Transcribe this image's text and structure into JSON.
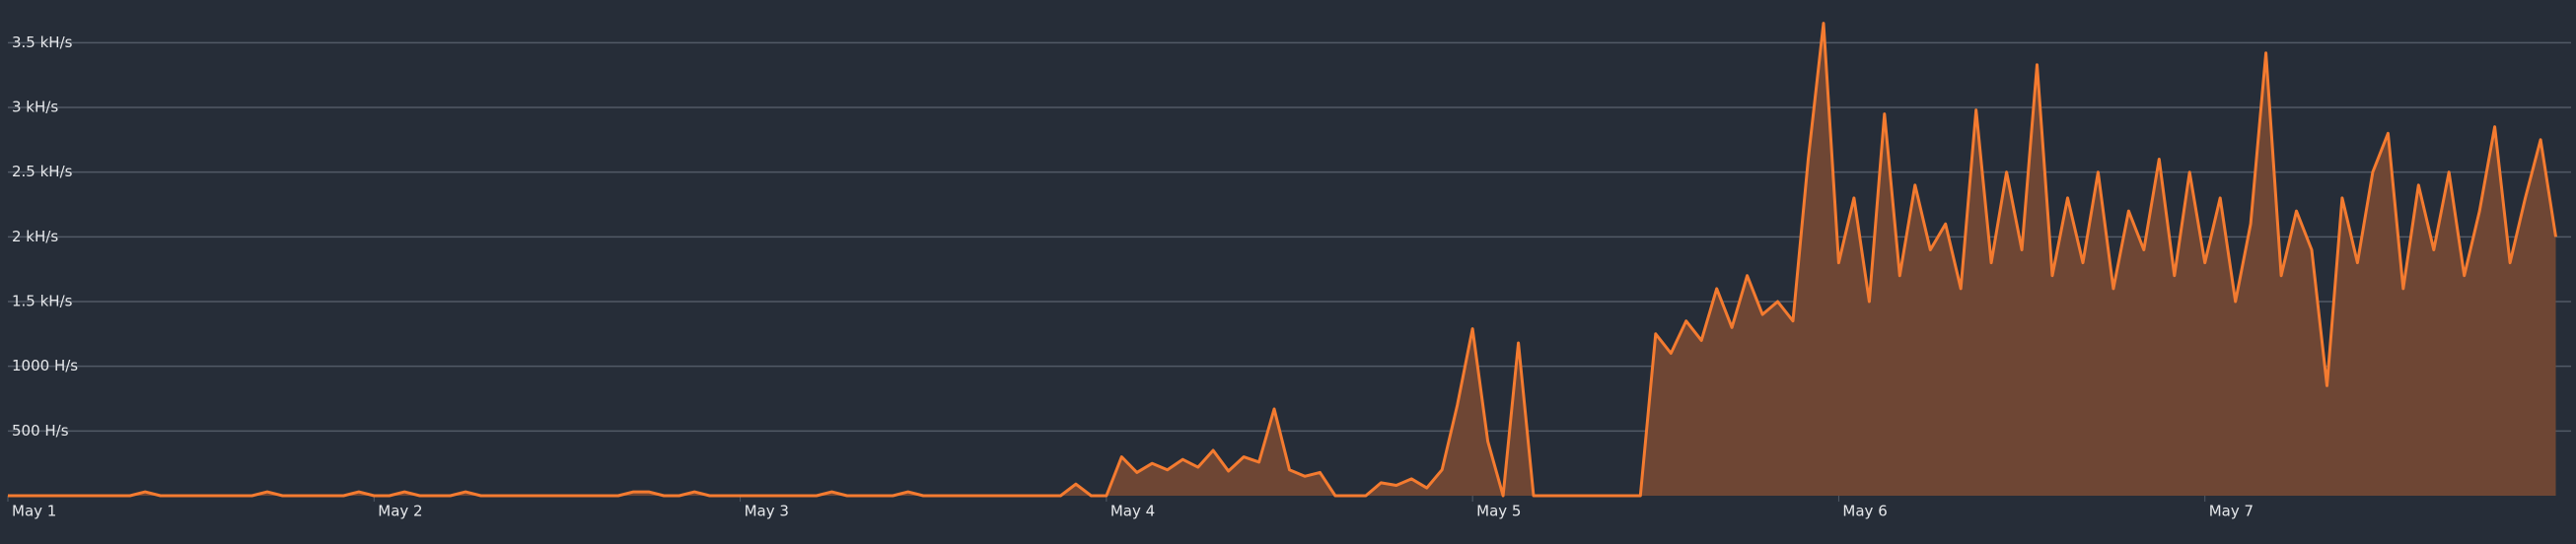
{
  "chart_data": {
    "type": "area",
    "values": [
      0,
      0,
      0,
      0,
      0,
      0,
      0,
      0,
      0,
      30,
      0,
      0,
      0,
      0,
      0,
      0,
      0,
      30,
      0,
      0,
      0,
      0,
      0,
      30,
      0,
      0,
      30,
      0,
      0,
      0,
      30,
      0,
      0,
      0,
      0,
      0,
      0,
      0,
      0,
      0,
      0,
      30,
      30,
      0,
      0,
      30,
      0,
      0,
      0,
      0,
      0,
      0,
      0,
      0,
      30,
      0,
      0,
      0,
      0,
      30,
      0,
      0,
      0,
      0,
      0,
      0,
      0,
      0,
      0,
      0,
      90,
      0,
      0,
      300,
      180,
      250,
      200,
      280,
      220,
      350,
      190,
      300,
      260,
      670,
      200,
      150,
      180,
      0,
      0,
      0,
      100,
      80,
      130,
      60,
      200,
      700,
      1290,
      420,
      0,
      1180,
      0,
      0,
      0,
      0,
      0,
      0,
      0,
      0,
      1250,
      1100,
      1350,
      1200,
      1600,
      1300,
      1700,
      1400,
      1500,
      1350,
      2600,
      3650,
      1800,
      2300,
      1500,
      2950,
      1700,
      2400,
      1900,
      2100,
      1600,
      2980,
      1800,
      2500,
      1900,
      3330,
      1700,
      2300,
      1800,
      2500,
      1600,
      2200,
      1900,
      2600,
      1700,
      2500,
      1800,
      2300,
      1500,
      2100,
      3420,
      1700,
      2200,
      1900,
      850,
      2300,
      1800,
      2500,
      2800,
      1600,
      2400,
      1900,
      2500,
      1700,
      2200,
      2850,
      1800,
      2300,
      2750,
      2000
    ],
    "xlim": [
      0,
      168
    ],
    "xticks": [
      {
        "value": 0,
        "label": "May 1"
      },
      {
        "value": 24,
        "label": "May 2"
      },
      {
        "value": 48,
        "label": "May 3"
      },
      {
        "value": 72,
        "label": "May 4"
      },
      {
        "value": 96,
        "label": "May 5"
      },
      {
        "value": 120,
        "label": "May 6"
      },
      {
        "value": 144,
        "label": "May 7"
      }
    ],
    "ylim": [
      0,
      3830
    ],
    "yticks": [
      {
        "value": 500,
        "label": "500 H/s"
      },
      {
        "value": 1000,
        "label": "1000 H/s"
      },
      {
        "value": 1500,
        "label": "1.5 kH/s"
      },
      {
        "value": 2000,
        "label": "2 kH/s"
      },
      {
        "value": 2500,
        "label": "2.5 kH/s"
      },
      {
        "value": 3000,
        "label": "3 kH/s"
      },
      {
        "value": 3500,
        "label": "3.5 kH/s"
      }
    ],
    "color": "#f47b30",
    "fill_color": "#6e4634",
    "grid": true
  }
}
